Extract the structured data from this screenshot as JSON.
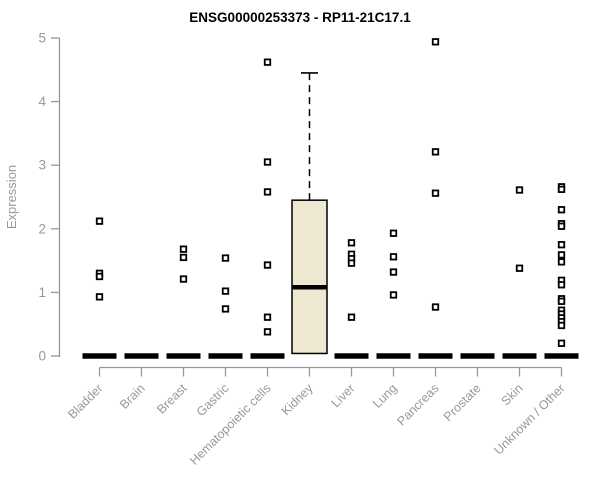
{
  "chart_data": {
    "type": "boxplot",
    "title": "ENSG00000253373 - RP11-21C17.1",
    "ylabel": "Expression",
    "xlabel": "",
    "ylim": [
      0,
      5
    ],
    "yticks": [
      0,
      1,
      2,
      3,
      4,
      5
    ],
    "grid": false,
    "legend": "none",
    "colors": {
      "box_fill": "#EDE8CF",
      "box_stroke": "#000000",
      "median": "#000000",
      "collapsed_box": "#000000",
      "outlier_stroke": "#000000",
      "axis": "#999999",
      "title": "#000000"
    },
    "categories": [
      "Bladder",
      "Brain",
      "Breast",
      "Gastric",
      "Hematopoietic cells",
      "Kidney",
      "Liver",
      "Lung",
      "Pancreas",
      "Prostate",
      "Skin",
      "Unknown / Other"
    ],
    "boxes": [
      {
        "category": "Bladder",
        "q1": 0,
        "median": 0,
        "q3": 0,
        "whisker_low": 0,
        "whisker_high": 0,
        "outliers": [
          2.12,
          1.3,
          1.25,
          0.93
        ]
      },
      {
        "category": "Brain",
        "q1": 0,
        "median": 0,
        "q3": 0,
        "whisker_low": 0,
        "whisker_high": 0,
        "outliers": []
      },
      {
        "category": "Breast",
        "q1": 0,
        "median": 0,
        "q3": 0,
        "whisker_low": 0,
        "whisker_high": 0,
        "outliers": [
          1.68,
          1.55,
          1.21
        ]
      },
      {
        "category": "Gastric",
        "q1": 0,
        "median": 0,
        "q3": 0,
        "whisker_low": 0,
        "whisker_high": 0,
        "outliers": [
          1.54,
          1.02,
          0.74
        ]
      },
      {
        "category": "Hematopoietic cells",
        "q1": 0,
        "median": 0,
        "q3": 0,
        "whisker_low": 0,
        "whisker_high": 0,
        "outliers": [
          4.62,
          3.05,
          2.58,
          1.43,
          0.61,
          0.38
        ]
      },
      {
        "category": "Kidney",
        "q1": 0.04,
        "median": 1.08,
        "q3": 2.45,
        "whisker_low": 0.04,
        "whisker_high": 4.45,
        "outliers": []
      },
      {
        "category": "Liver",
        "q1": 0,
        "median": 0,
        "q3": 0,
        "whisker_low": 0,
        "whisker_high": 0,
        "outliers": [
          1.78,
          1.6,
          1.53,
          1.46,
          0.61
        ]
      },
      {
        "category": "Lung",
        "q1": 0,
        "median": 0,
        "q3": 0,
        "whisker_low": 0,
        "whisker_high": 0,
        "outliers": [
          1.93,
          1.56,
          1.32,
          0.96
        ]
      },
      {
        "category": "Pancreas",
        "q1": 0,
        "median": 0,
        "q3": 0,
        "whisker_low": 0,
        "whisker_high": 0,
        "outliers": [
          4.94,
          3.21,
          2.56,
          0.77
        ]
      },
      {
        "category": "Prostate",
        "q1": 0,
        "median": 0,
        "q3": 0,
        "whisker_low": 0,
        "whisker_high": 0,
        "outliers": []
      },
      {
        "category": "Skin",
        "q1": 0,
        "median": 0,
        "q3": 0,
        "whisker_low": 0,
        "whisker_high": 0,
        "outliers": [
          2.61,
          1.38
        ]
      },
      {
        "category": "Unknown / Other",
        "q1": 0,
        "median": 0,
        "q3": 0,
        "whisker_low": 0,
        "whisker_high": 0,
        "outliers": [
          2.66,
          2.62,
          2.3,
          2.08,
          2.04,
          1.75,
          1.59,
          1.48,
          1.19,
          1.12,
          0.9,
          0.86,
          0.72,
          0.66,
          0.6,
          0.54,
          0.48,
          0.2
        ]
      }
    ]
  }
}
